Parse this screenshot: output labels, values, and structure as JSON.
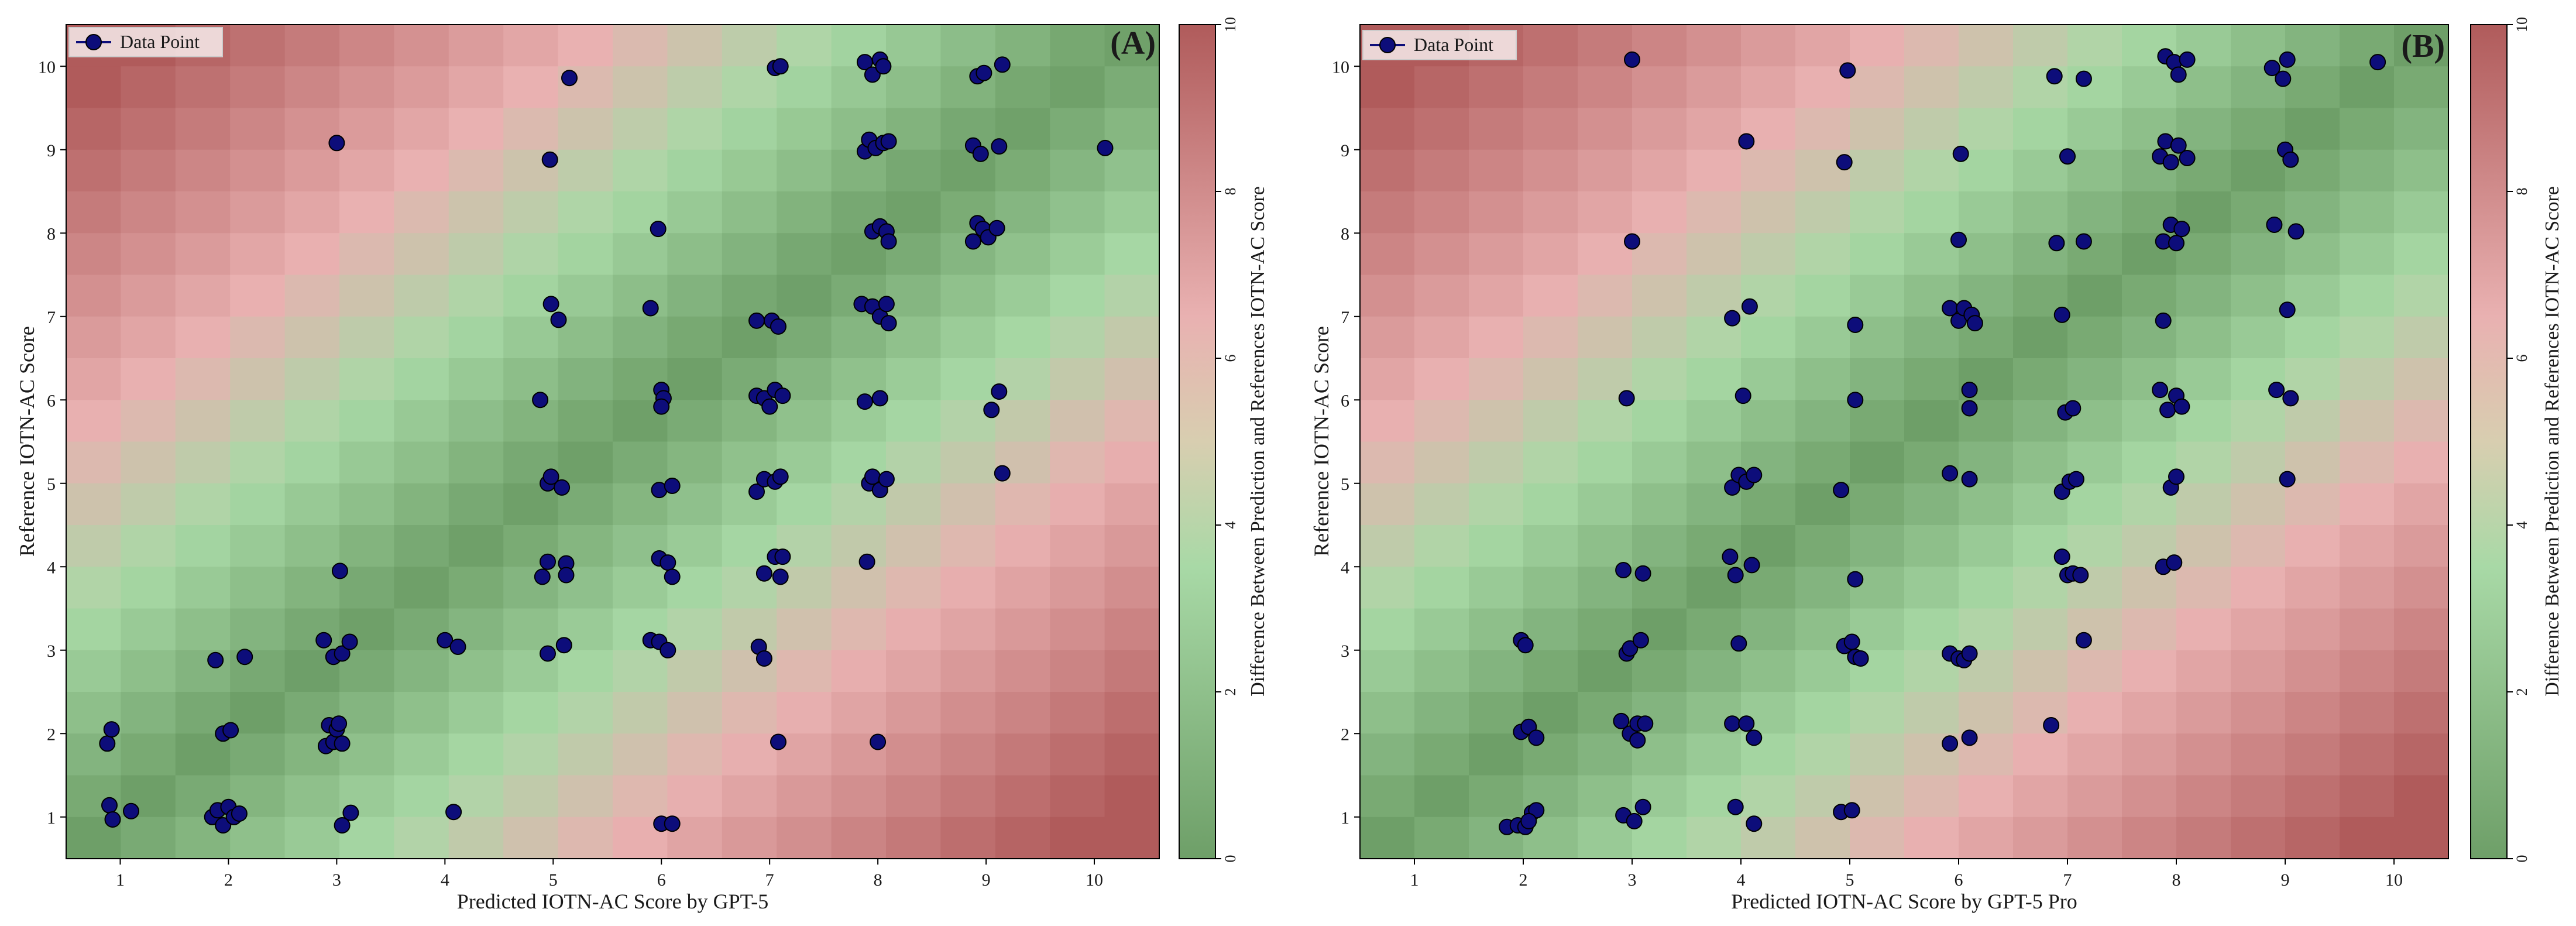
{
  "figure": {
    "panels": [
      {
        "label": "(A)",
        "xlabel": "Predicted IOTN-AC Score by GPT-5",
        "ylabel": "Reference IOTN-AC Score",
        "legend_label": "Data Point",
        "colorbar_label": "Difference Between Prediction and References  IOTN-AC Score"
      },
      {
        "label": "(B)",
        "xlabel": "Predicted IOTN-AC Score by GPT-5 Pro",
        "ylabel": "Reference IOTN-AC Score",
        "legend_label": "Data Point",
        "colorbar_label": "Difference Between Prediction and References  IOTN-AC Score"
      }
    ]
  },
  "colors": {
    "low": "#6e9f68",
    "mid_green": "#a8d9a6",
    "mid_pink": "#e9b1b1",
    "high": "#b05b5b",
    "point_fill": "#0d0d7a",
    "point_edge": "#000000"
  },
  "chart_data": [
    {
      "type": "scatter",
      "title": "(A)",
      "xlabel": "Predicted IOTN-AC Score by GPT-5",
      "ylabel": "Reference IOTN-AC Score",
      "xlim": [
        0.5,
        10.6
      ],
      "ylim": [
        0.5,
        10.5
      ],
      "xticks": [
        1,
        2,
        3,
        4,
        5,
        6,
        7,
        8,
        9,
        10
      ],
      "yticks": [
        1,
        2,
        3,
        4,
        5,
        6,
        7,
        8,
        9,
        10
      ],
      "background": "heatmap of |predicted - reference|",
      "colorbar": {
        "label": "Difference Between Prediction and References  IOTN-AC Score",
        "range": [
          0,
          10
        ],
        "ticks": [
          0,
          2,
          4,
          6,
          8,
          10
        ]
      },
      "legend": {
        "label": "Data Point",
        "position": "top-left"
      },
      "points": [
        [
          0.88,
          1.88
        ],
        [
          0.92,
          2.05
        ],
        [
          0.9,
          1.14
        ],
        [
          0.93,
          0.97
        ],
        [
          1.1,
          1.07
        ],
        [
          1.85,
          1.0
        ],
        [
          1.9,
          1.08
        ],
        [
          1.95,
          0.9
        ],
        [
          2.0,
          1.12
        ],
        [
          2.05,
          1.0
        ],
        [
          2.1,
          1.04
        ],
        [
          1.88,
          2.88
        ],
        [
          2.15,
          2.92
        ],
        [
          1.95,
          2.0
        ],
        [
          2.02,
          2.04
        ],
        [
          2.9,
          1.85
        ],
        [
          2.93,
          2.1
        ],
        [
          2.97,
          1.9
        ],
        [
          3.0,
          2.05
        ],
        [
          3.02,
          2.12
        ],
        [
          3.05,
          1.88
        ],
        [
          2.88,
          3.12
        ],
        [
          2.97,
          2.92
        ],
        [
          3.05,
          2.96
        ],
        [
          3.12,
          3.1
        ],
        [
          3.03,
          3.95
        ],
        [
          3.05,
          0.9
        ],
        [
          3.13,
          1.05
        ],
        [
          3.0,
          9.08
        ],
        [
          4.0,
          3.12
        ],
        [
          4.12,
          3.04
        ],
        [
          4.08,
          1.06
        ],
        [
          4.9,
          3.88
        ],
        [
          4.95,
          4.06
        ],
        [
          5.12,
          4.04
        ],
        [
          5.12,
          3.9
        ],
        [
          4.95,
          2.96
        ],
        [
          5.1,
          3.06
        ],
        [
          4.95,
          5.0
        ],
        [
          4.98,
          5.08
        ],
        [
          5.08,
          4.95
        ],
        [
          4.88,
          6.0
        ],
        [
          4.98,
          7.15
        ],
        [
          5.05,
          6.96
        ],
        [
          4.97,
          8.88
        ],
        [
          5.15,
          9.86
        ],
        [
          5.9,
          3.12
        ],
        [
          5.98,
          3.1
        ],
        [
          6.06,
          3.0
        ],
        [
          5.98,
          4.1
        ],
        [
          6.06,
          4.05
        ],
        [
          6.1,
          3.88
        ],
        [
          5.98,
          4.92
        ],
        [
          6.1,
          4.97
        ],
        [
          6.0,
          6.12
        ],
        [
          6.02,
          6.02
        ],
        [
          6.0,
          5.92
        ],
        [
          5.9,
          7.1
        ],
        [
          5.97,
          8.05
        ],
        [
          6.0,
          0.92
        ],
        [
          6.1,
          0.92
        ],
        [
          6.9,
          3.04
        ],
        [
          6.95,
          2.9
        ],
        [
          6.95,
          3.92
        ],
        [
          7.05,
          4.12
        ],
        [
          7.12,
          4.12
        ],
        [
          7.1,
          3.88
        ],
        [
          6.88,
          4.9
        ],
        [
          6.95,
          5.05
        ],
        [
          7.05,
          5.02
        ],
        [
          7.1,
          5.08
        ],
        [
          6.88,
          6.05
        ],
        [
          6.95,
          6.02
        ],
        [
          7.0,
          5.92
        ],
        [
          7.05,
          6.12
        ],
        [
          7.12,
          6.05
        ],
        [
          6.88,
          6.95
        ],
        [
          7.02,
          6.95
        ],
        [
          7.08,
          6.88
        ],
        [
          7.05,
          9.98
        ],
        [
          7.1,
          10.0
        ],
        [
          7.08,
          1.9
        ],
        [
          7.9,
          4.06
        ],
        [
          7.92,
          5.0
        ],
        [
          7.95,
          5.08
        ],
        [
          8.02,
          4.92
        ],
        [
          8.08,
          5.05
        ],
        [
          7.88,
          5.98
        ],
        [
          8.02,
          6.02
        ],
        [
          7.85,
          7.15
        ],
        [
          7.95,
          7.12
        ],
        [
          8.02,
          7.0
        ],
        [
          8.08,
          7.15
        ],
        [
          8.1,
          6.92
        ],
        [
          7.95,
          8.02
        ],
        [
          8.02,
          8.08
        ],
        [
          8.08,
          8.02
        ],
        [
          8.1,
          7.9
        ],
        [
          7.88,
          8.98
        ],
        [
          7.92,
          9.12
        ],
        [
          7.98,
          9.02
        ],
        [
          8.05,
          9.08
        ],
        [
          8.1,
          9.1
        ],
        [
          7.88,
          10.05
        ],
        [
          7.95,
          9.9
        ],
        [
          8.02,
          10.08
        ],
        [
          8.05,
          10.0
        ],
        [
          8.0,
          1.9
        ],
        [
          8.88,
          7.9
        ],
        [
          8.92,
          8.12
        ],
        [
          8.97,
          8.05
        ],
        [
          9.02,
          7.95
        ],
        [
          9.1,
          8.06
        ],
        [
          8.88,
          9.05
        ],
        [
          8.95,
          8.95
        ],
        [
          9.12,
          9.04
        ],
        [
          8.92,
          9.88
        ],
        [
          8.98,
          9.92
        ],
        [
          9.15,
          10.02
        ],
        [
          9.05,
          5.88
        ],
        [
          9.12,
          6.1
        ],
        [
          9.15,
          5.12
        ],
        [
          10.1,
          9.02
        ]
      ]
    },
    {
      "type": "scatter",
      "title": "(B)",
      "xlabel": "Predicted IOTN-AC Score by GPT-5 Pro",
      "ylabel": "Reference IOTN-AC Score",
      "xlim": [
        0.5,
        10.5
      ],
      "ylim": [
        0.5,
        10.5
      ],
      "xticks": [
        1,
        2,
        3,
        4,
        5,
        6,
        7,
        8,
        9,
        10
      ],
      "yticks": [
        1,
        2,
        3,
        4,
        5,
        6,
        7,
        8,
        9,
        10
      ],
      "background": "heatmap of |predicted - reference|",
      "colorbar": {
        "label": "Difference Between Prediction and References  IOTN-AC Score",
        "range": [
          0,
          10
        ],
        "ticks": [
          0,
          2,
          4,
          6,
          8,
          10
        ]
      },
      "legend": {
        "label": "Data Point",
        "position": "top-left"
      },
      "points": [
        [
          1.85,
          0.88
        ],
        [
          1.95,
          0.9
        ],
        [
          2.02,
          0.88
        ],
        [
          2.08,
          1.05
        ],
        [
          2.12,
          1.08
        ],
        [
          2.05,
          0.95
        ],
        [
          1.98,
          2.02
        ],
        [
          2.05,
          2.08
        ],
        [
          2.12,
          1.95
        ],
        [
          1.98,
          3.12
        ],
        [
          2.02,
          3.06
        ],
        [
          2.92,
          1.02
        ],
        [
          3.02,
          0.95
        ],
        [
          3.1,
          1.12
        ],
        [
          2.9,
          2.15
        ],
        [
          2.98,
          2.0
        ],
        [
          3.05,
          2.12
        ],
        [
          3.12,
          2.12
        ],
        [
          3.05,
          1.92
        ],
        [
          2.95,
          2.96
        ],
        [
          2.98,
          3.02
        ],
        [
          3.08,
          3.12
        ],
        [
          2.92,
          3.96
        ],
        [
          3.1,
          3.92
        ],
        [
          2.95,
          6.02
        ],
        [
          3.0,
          7.9
        ],
        [
          3.0,
          10.08
        ],
        [
          3.95,
          1.12
        ],
        [
          4.12,
          0.92
        ],
        [
          3.92,
          2.12
        ],
        [
          4.05,
          2.12
        ],
        [
          4.12,
          1.95
        ],
        [
          3.98,
          3.08
        ],
        [
          3.9,
          4.12
        ],
        [
          3.95,
          3.9
        ],
        [
          4.1,
          4.02
        ],
        [
          3.92,
          4.95
        ],
        [
          3.98,
          5.1
        ],
        [
          4.05,
          5.02
        ],
        [
          4.12,
          5.1
        ],
        [
          4.02,
          6.05
        ],
        [
          3.92,
          6.98
        ],
        [
          4.08,
          7.12
        ],
        [
          4.05,
          9.1
        ],
        [
          4.92,
          1.06
        ],
        [
          5.02,
          1.08
        ],
        [
          4.95,
          3.05
        ],
        [
          5.02,
          3.1
        ],
        [
          5.05,
          2.92
        ],
        [
          5.1,
          2.9
        ],
        [
          5.05,
          3.85
        ],
        [
          4.92,
          4.92
        ],
        [
          5.05,
          6.0
        ],
        [
          5.05,
          6.9
        ],
        [
          4.95,
          8.85
        ],
        [
          4.98,
          9.95
        ],
        [
          5.92,
          1.88
        ],
        [
          6.1,
          1.95
        ],
        [
          5.92,
          2.96
        ],
        [
          6.0,
          2.9
        ],
        [
          6.05,
          2.88
        ],
        [
          6.1,
          2.96
        ],
        [
          5.92,
          5.12
        ],
        [
          6.1,
          5.05
        ],
        [
          6.1,
          5.9
        ],
        [
          6.1,
          6.12
        ],
        [
          5.92,
          7.1
        ],
        [
          6.0,
          6.95
        ],
        [
          6.05,
          7.1
        ],
        [
          6.12,
          7.02
        ],
        [
          6.15,
          6.92
        ],
        [
          6.0,
          7.92
        ],
        [
          6.02,
          8.95
        ],
        [
          6.85,
          2.1
        ],
        [
          7.15,
          3.12
        ],
        [
          6.95,
          4.12
        ],
        [
          7.0,
          3.9
        ],
        [
          7.05,
          3.92
        ],
        [
          7.12,
          3.9
        ],
        [
          6.95,
          4.9
        ],
        [
          7.02,
          5.02
        ],
        [
          7.08,
          5.05
        ],
        [
          6.98,
          5.85
        ],
        [
          7.05,
          5.9
        ],
        [
          6.95,
          7.02
        ],
        [
          6.9,
          7.88
        ],
        [
          7.15,
          7.9
        ],
        [
          7.0,
          8.92
        ],
        [
          6.88,
          9.88
        ],
        [
          7.15,
          9.85
        ],
        [
          7.88,
          4.0
        ],
        [
          7.98,
          4.05
        ],
        [
          7.95,
          4.95
        ],
        [
          8.0,
          5.08
        ],
        [
          7.85,
          6.12
        ],
        [
          7.92,
          5.88
        ],
        [
          8.0,
          6.05
        ],
        [
          8.05,
          5.92
        ],
        [
          7.88,
          6.95
        ],
        [
          7.88,
          7.9
        ],
        [
          7.95,
          8.1
        ],
        [
          8.0,
          7.88
        ],
        [
          8.05,
          8.05
        ],
        [
          7.85,
          8.92
        ],
        [
          7.9,
          9.1
        ],
        [
          7.95,
          8.85
        ],
        [
          8.02,
          9.05
        ],
        [
          8.1,
          8.9
        ],
        [
          7.9,
          10.12
        ],
        [
          7.98,
          10.05
        ],
        [
          8.02,
          9.9
        ],
        [
          8.1,
          10.08
        ],
        [
          8.9,
          8.1
        ],
        [
          9.1,
          8.02
        ],
        [
          8.92,
          6.12
        ],
        [
          9.05,
          6.02
        ],
        [
          9.02,
          7.08
        ],
        [
          9.02,
          5.05
        ],
        [
          8.88,
          9.98
        ],
        [
          8.98,
          9.85
        ],
        [
          9.02,
          10.08
        ],
        [
          9.0,
          9.0
        ],
        [
          9.05,
          8.88
        ],
        [
          9.85,
          10.05
        ]
      ]
    }
  ]
}
